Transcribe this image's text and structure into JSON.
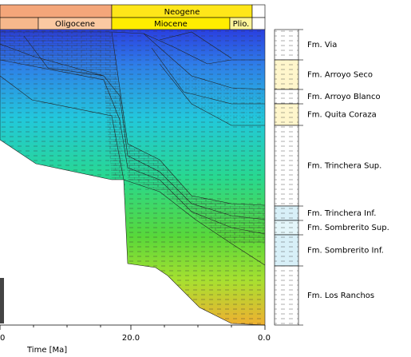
{
  "header": {
    "periods": [
      "Neogene"
    ],
    "epochs": [
      "Oligocene",
      "Miocene",
      "Plio."
    ]
  },
  "axis": {
    "ticks": [
      "0",
      "20.0",
      "0.0"
    ],
    "label": "Time [Ma]"
  },
  "formations": [
    "Fm. Via",
    "Fm. Arroyo Seco",
    "Fm. Arroyo Blanco",
    "Fm. Quita Coraza",
    "Fm. Trinchera Sup.",
    "Fm. Trinchera Inf.",
    "Fm. Sombrerito Sup.",
    "Fm. Sombrerito Inf.",
    "Fm. Los Ranchos"
  ]
}
